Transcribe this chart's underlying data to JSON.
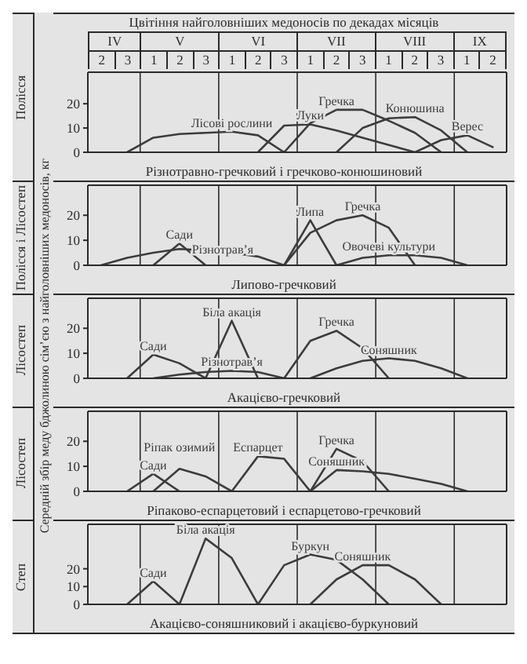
{
  "chart_data": [
    {
      "type": "line",
      "title": "Цвітіння найголовніших медоносів по декадах місяців",
      "ylabel": "Полісся",
      "xlabel": "Різнотравно-гречковий і гречково-конюшиновий",
      "annotations": [
        "Середній збір меду бджолиною сім’єю з найголовніших медоносів, кг",
        "IV",
        "V",
        "VI",
        "VII",
        "VIII",
        "IX"
      ],
      "categories": [
        "2",
        "3",
        "1",
        "2",
        "3",
        "1",
        "2",
        "3",
        "1",
        "2",
        "3",
        "1",
        "2",
        "3",
        "1",
        "2"
      ],
      "ylim": [
        0,
        33
      ],
      "yticks": [
        0,
        10,
        20
      ],
      "series": [
        {
          "name": "Лісові рослини",
          "color": "#3c3c3c",
          "values": [
            null,
            0,
            6,
            7.5,
            8,
            8.5,
            7,
            0,
            null,
            null,
            null,
            null,
            null,
            null,
            null,
            null
          ]
        },
        {
          "name": "Луки",
          "color": "#3c3c3c",
          "values": [
            null,
            null,
            null,
            null,
            null,
            null,
            0,
            11,
            11.5,
            9,
            6,
            3,
            0,
            null,
            null,
            null
          ]
        },
        {
          "name": "Гречка",
          "color": "#3c3c3c",
          "values": [
            null,
            null,
            null,
            null,
            null,
            null,
            null,
            0,
            12,
            17.5,
            17.5,
            13,
            8,
            0,
            null,
            null
          ]
        },
        {
          "name": "Конюшина",
          "color": "#3c3c3c",
          "values": [
            null,
            null,
            null,
            null,
            null,
            null,
            null,
            null,
            null,
            0,
            10,
            14,
            14.5,
            9,
            0,
            null
          ]
        },
        {
          "name": "Верес",
          "color": "#3c3c3c",
          "values": [
            null,
            null,
            null,
            null,
            null,
            null,
            null,
            null,
            null,
            null,
            null,
            null,
            0,
            5,
            7,
            2
          ]
        }
      ]
    },
    {
      "type": "line",
      "ylabel": "Полісся і Лісостеп",
      "xlabel": "Липово-гречковий",
      "tick_labels": "y",
      "categories": [
        "2",
        "3",
        "1",
        "2",
        "3",
        "1",
        "2",
        "3",
        "1",
        "2",
        "3",
        "1",
        "2",
        "3",
        "1",
        "2"
      ],
      "ylim": [
        0,
        32
      ],
      "yticks": [
        0,
        10,
        20
      ],
      "series": [
        {
          "name": "Сади",
          "color": "#3c3c3c",
          "values": [
            null,
            null,
            0,
            8.7,
            0,
            null,
            null,
            null,
            null,
            null,
            null,
            null,
            null,
            null,
            null,
            null
          ]
        },
        {
          "name": "Різнотрав’я",
          "color": "#3c3c3c",
          "values": [
            0,
            3,
            5,
            6.5,
            6,
            5,
            3.5,
            0,
            null,
            null,
            null,
            null,
            null,
            null,
            null,
            null
          ]
        },
        {
          "name": "Липа",
          "color": "#3c3c3c",
          "values": [
            null,
            null,
            null,
            null,
            null,
            null,
            null,
            0,
            18,
            0,
            null,
            null,
            null,
            null,
            null,
            null
          ]
        },
        {
          "name": "Гречка",
          "color": "#3c3c3c",
          "values": [
            null,
            null,
            null,
            null,
            null,
            null,
            null,
            0,
            13,
            18,
            20,
            15,
            0,
            null,
            null,
            null
          ]
        },
        {
          "name": "Овочеві культури",
          "color": "#3c3c3c",
          "values": [
            null,
            null,
            null,
            null,
            null,
            null,
            null,
            null,
            null,
            0,
            3,
            4,
            4,
            3,
            0,
            null
          ]
        }
      ]
    },
    {
      "type": "line",
      "ylabel": "Лісостеп",
      "xlabel": "Акацієво-гречковий",
      "tick_labels": "y",
      "categories": [
        "2",
        "3",
        "1",
        "2",
        "3",
        "1",
        "2",
        "3",
        "1",
        "2",
        "3",
        "1",
        "2",
        "3",
        "1",
        "2"
      ],
      "ylim": [
        0,
        32
      ],
      "yticks": [
        0,
        10,
        20
      ],
      "series": [
        {
          "name": "Сади",
          "color": "#3c3c3c",
          "values": [
            null,
            0,
            9.5,
            6,
            0,
            null,
            null,
            null,
            null,
            null,
            null,
            null,
            null,
            null,
            null,
            null
          ]
        },
        {
          "name": "Різнотрав’я",
          "color": "#3c3c3c",
          "values": [
            null,
            null,
            0,
            1.5,
            2.5,
            3,
            2.5,
            0,
            null,
            null,
            null,
            null,
            null,
            null,
            null,
            null
          ]
        },
        {
          "name": "Біла акація",
          "color": "#3c3c3c",
          "values": [
            null,
            null,
            null,
            null,
            0,
            23,
            0,
            null,
            null,
            null,
            null,
            null,
            null,
            null,
            null,
            null
          ]
        },
        {
          "name": "Гречка",
          "color": "#3c3c3c",
          "values": [
            null,
            null,
            null,
            null,
            null,
            null,
            null,
            0,
            15,
            19,
            12,
            0,
            null,
            null,
            null,
            null
          ]
        },
        {
          "name": "Соняшник",
          "color": "#3c3c3c",
          "values": [
            null,
            null,
            null,
            null,
            null,
            null,
            null,
            null,
            0,
            4,
            7,
            8,
            7,
            4,
            0,
            null
          ]
        }
      ]
    },
    {
      "type": "line",
      "ylabel": "Лісостеп",
      "xlabel": "Ріпаково-еспарцетовий і еспарцетово-гречковий",
      "tick_labels": "y",
      "categories": [
        "2",
        "3",
        "1",
        "2",
        "3",
        "1",
        "2",
        "3",
        "1",
        "2",
        "3",
        "1",
        "2",
        "3",
        "1",
        "2"
      ],
      "ylim": [
        0,
        32
      ],
      "yticks": [
        0,
        10,
        20
      ],
      "series": [
        {
          "name": "Сади",
          "color": "#3c3c3c",
          "values": [
            null,
            0,
            7,
            0,
            null,
            null,
            null,
            null,
            null,
            null,
            null,
            null,
            null,
            null,
            null,
            null
          ]
        },
        {
          "name": "Ріпак озимий",
          "color": "#3c3c3c",
          "values": [
            null,
            null,
            0,
            9,
            6,
            0,
            null,
            null,
            null,
            null,
            null,
            null,
            null,
            null,
            null,
            null
          ]
        },
        {
          "name": "Еспарцет",
          "color": "#3c3c3c",
          "values": [
            null,
            null,
            null,
            null,
            null,
            0,
            14,
            13,
            0,
            null,
            null,
            null,
            null,
            null,
            null,
            null
          ]
        },
        {
          "name": "Гречка",
          "color": "#3c3c3c",
          "values": [
            null,
            null,
            null,
            null,
            null,
            null,
            null,
            null,
            0,
            17,
            12,
            0,
            null,
            null,
            null,
            null
          ]
        },
        {
          "name": "Соняшник",
          "color": "#3c3c3c",
          "values": [
            null,
            null,
            null,
            null,
            null,
            null,
            null,
            null,
            0,
            8.5,
            8,
            7,
            5,
            3,
            0,
            null
          ]
        }
      ]
    },
    {
      "type": "line",
      "ylabel": "Степ",
      "xlabel": "Акацієво-соняшниковий і акацієво-буркуновий",
      "tick_labels": "y",
      "categories": [
        "2",
        "3",
        "1",
        "2",
        "3",
        "1",
        "2",
        "3",
        "1",
        "2",
        "3",
        "1",
        "2",
        "3",
        "1",
        "2"
      ],
      "ylim": [
        0,
        45
      ],
      "yticks": [
        0,
        10,
        20
      ],
      "series": [
        {
          "name": "Сади",
          "color": "#3c3c3c",
          "values": [
            null,
            0,
            13,
            0,
            null,
            null,
            null,
            null,
            null,
            null,
            null,
            null,
            null,
            null,
            null,
            null
          ]
        },
        {
          "name": "Біла акація",
          "color": "#3c3c3c",
          "values": [
            null,
            null,
            null,
            0,
            37,
            26,
            0,
            null,
            null,
            null,
            null,
            null,
            null,
            null,
            null,
            null
          ]
        },
        {
          "name": "Буркун",
          "color": "#3c3c3c",
          "values": [
            null,
            null,
            null,
            null,
            null,
            null,
            0,
            22,
            28,
            25,
            14,
            0,
            null,
            null,
            null,
            null
          ]
        },
        {
          "name": "Соняшник",
          "color": "#3c3c3c",
          "values": [
            null,
            null,
            null,
            null,
            null,
            null,
            null,
            null,
            0,
            14,
            22,
            22,
            14,
            0,
            null,
            null
          ]
        }
      ]
    }
  ]
}
